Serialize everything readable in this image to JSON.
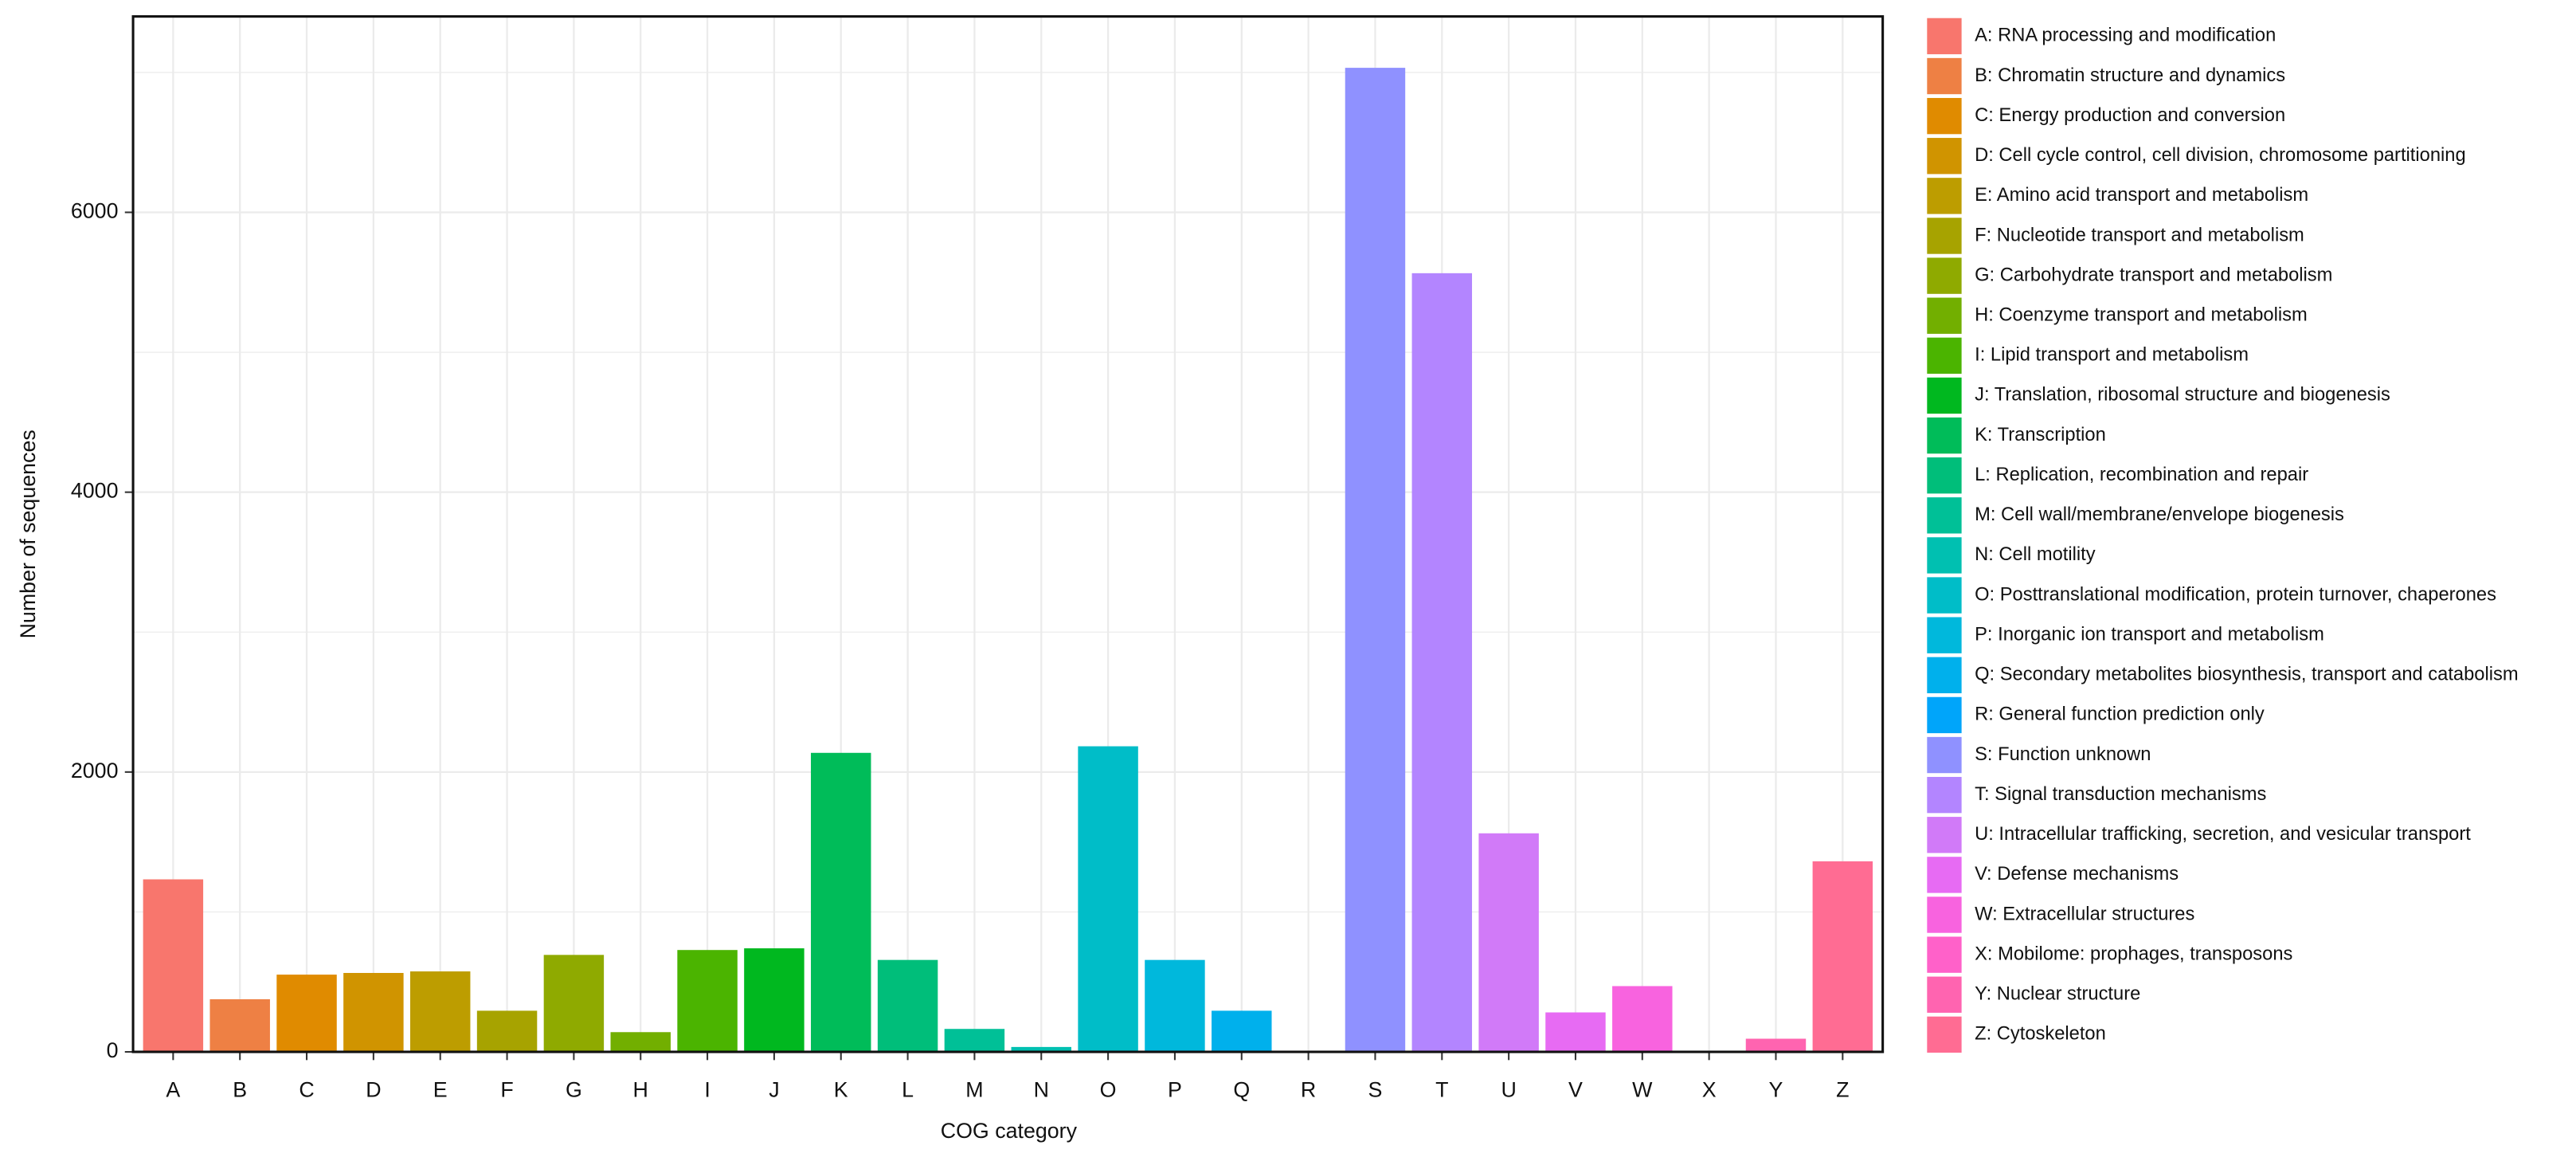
{
  "chart_data": {
    "type": "bar",
    "x_label": "COG category",
    "y_label": "Number of sequences",
    "categories": [
      "A",
      "B",
      "C",
      "D",
      "E",
      "F",
      "G",
      "H",
      "I",
      "J",
      "K",
      "L",
      "M",
      "N",
      "O",
      "P",
      "Q",
      "R",
      "S",
      "T",
      "U",
      "V",
      "W",
      "X",
      "Y",
      "Z"
    ],
    "values": [
      1233,
      376,
      552,
      564,
      575,
      294,
      693,
      141,
      728,
      740,
      2137,
      657,
      164,
      35,
      2184,
      657,
      294,
      0,
      7033,
      5565,
      1562,
      282,
      470,
      0,
      94,
      1362
    ],
    "colors": [
      "#F8766D",
      "#EE8044",
      "#E08B00",
      "#D09400",
      "#BD9D00",
      "#A7A300",
      "#8FAA00",
      "#72AF00",
      "#4BB400",
      "#00B81F",
      "#00BC59",
      "#00BE7A",
      "#00C097",
      "#00C0B1",
      "#00BDC8",
      "#00B8DC",
      "#00B0EC",
      "#00A5FA",
      "#8F91FF",
      "#B385FF",
      "#D17AF8",
      "#E76BF3",
      "#F863DF",
      "#FF61C9",
      "#FF64B0",
      "#FF6C93"
    ],
    "legend": [
      "A: RNA processing and modification",
      "B: Chromatin structure and dynamics",
      "C: Energy production and conversion",
      "D: Cell cycle control, cell division, chromosome partitioning",
      "E: Amino acid transport and metabolism",
      "F: Nucleotide transport and metabolism",
      "G: Carbohydrate transport and metabolism",
      "H: Coenzyme transport and metabolism",
      "I: Lipid transport and metabolism",
      "J: Translation, ribosomal structure and biogenesis",
      "K: Transcription",
      "L: Replication, recombination and repair",
      "M: Cell wall/membrane/envelope biogenesis",
      "N: Cell motility",
      "O: Posttranslational modification, protein turnover, chaperones",
      "P: Inorganic ion transport and metabolism",
      "Q: Secondary metabolites biosynthesis, transport and catabolism",
      "R: General function prediction only",
      "S: Function unknown",
      "T: Signal transduction mechanisms",
      "U: Intracellular trafficking, secretion, and vesicular transport",
      "V: Defense mechanisms",
      "W: Extracellular structures",
      "X: Mobilome: prophages, transposons",
      "Y: Nuclear structure",
      "Z: Cytoskeleton"
    ],
    "ylim": [
      0,
      7400
    ],
    "yticks": [
      0,
      2000,
      4000,
      6000
    ],
    "minor_yticks": [
      1000,
      3000,
      5000,
      7000
    ],
    "grid": true
  }
}
